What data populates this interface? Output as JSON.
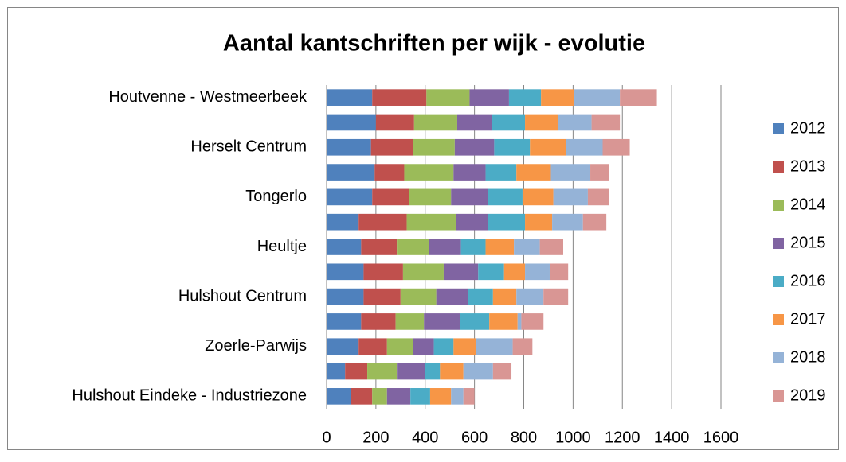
{
  "chart_data": {
    "type": "stacked-bar-horizontal",
    "title": "Aantal kantschriften per wijk - evolutie",
    "categories": [
      "Houtvenne - Westmeerbeek",
      null,
      "Herselt Centrum",
      null,
      "Tongerlo",
      null,
      "Heultje",
      null,
      "Hulshout Centrum",
      null,
      "Zoerle-Parwijs",
      null,
      "Hulshout Eindeke - Industriezone"
    ],
    "series": [
      {
        "name": "2012",
        "color": "#4f81bd",
        "values": [
          185,
          200,
          180,
          195,
          185,
          130,
          140,
          150,
          150,
          140,
          130,
          75,
          100
        ]
      },
      {
        "name": "2013",
        "color": "#c0504d",
        "values": [
          220,
          155,
          170,
          120,
          150,
          195,
          145,
          160,
          150,
          140,
          115,
          90,
          85
        ]
      },
      {
        "name": "2014",
        "color": "#9bbb59",
        "values": [
          175,
          175,
          170,
          200,
          170,
          200,
          130,
          165,
          145,
          115,
          105,
          120,
          60
        ]
      },
      {
        "name": "2015",
        "color": "#8064a2",
        "values": [
          160,
          140,
          160,
          130,
          150,
          130,
          130,
          140,
          130,
          145,
          85,
          115,
          95
        ]
      },
      {
        "name": "2016",
        "color": "#4bacc6",
        "values": [
          130,
          135,
          145,
          125,
          140,
          150,
          100,
          105,
          100,
          120,
          80,
          60,
          80
        ]
      },
      {
        "name": "2017",
        "color": "#f79646",
        "values": [
          135,
          135,
          145,
          140,
          125,
          110,
          115,
          85,
          95,
          115,
          90,
          95,
          85
        ]
      },
      {
        "name": "2018",
        "color": "#95b3d7",
        "values": [
          185,
          135,
          150,
          160,
          140,
          125,
          105,
          100,
          110,
          15,
          150,
          120,
          50
        ]
      },
      {
        "name": "2019",
        "color": "#d99694",
        "values": [
          150,
          115,
          110,
          75,
          85,
          95,
          95,
          75,
          100,
          90,
          80,
          75,
          45
        ]
      }
    ],
    "xlim": [
      0,
      1600
    ],
    "xticks": [
      0,
      200,
      400,
      600,
      800,
      1000,
      1200,
      1400,
      1600
    ],
    "grid": true,
    "legend": "right"
  }
}
